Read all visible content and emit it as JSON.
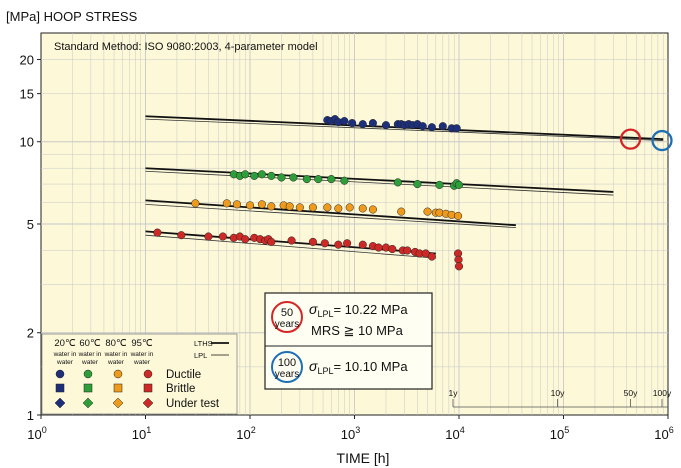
{
  "chart_data": {
    "type": "scatter",
    "ylabel": "[MPa] HOOP STRESS",
    "xlabel": "TIME [h]",
    "method_note": "Standard Method: ISO 9080:2003, 4-parameter model",
    "x_scale": "log",
    "y_scale": "log",
    "xlim": [
      1,
      1000000
    ],
    "ylim": [
      1,
      25
    ],
    "x_ticks": [
      {
        "value": 1,
        "base": "10",
        "exp": "0"
      },
      {
        "value": 10,
        "base": "10",
        "exp": "1"
      },
      {
        "value": 100,
        "base": "10",
        "exp": "2"
      },
      {
        "value": 1000,
        "base": "10",
        "exp": "3"
      },
      {
        "value": 10000,
        "base": "10",
        "exp": "4"
      },
      {
        "value": 100000,
        "base": "10",
        "exp": "5"
      },
      {
        "value": 1000000,
        "base": "10",
        "exp": "6"
      }
    ],
    "y_ticks": [
      {
        "value": 1,
        "label": "1"
      },
      {
        "value": 2,
        "label": "2"
      },
      {
        "value": 5,
        "label": "5"
      },
      {
        "value": 10,
        "label": "10"
      },
      {
        "value": 15,
        "label": "15"
      },
      {
        "value": 20,
        "label": "20"
      }
    ],
    "grid": true,
    "colors": {
      "plot_bg": "#fcf8d8",
      "grid": "#c8c8c8",
      "red_circle": "#d42626",
      "blue_circle": "#1f6fb4"
    },
    "series": [
      {
        "name": "20℃ water in water",
        "color": "#1d2f7a",
        "lths": {
          "x": [
            10,
            900000
          ],
          "y": [
            12.4,
            10.22
          ]
        },
        "lpl": {
          "x": [
            10,
            900000
          ],
          "y": [
            12.1,
            10.1
          ]
        },
        "points": [
          [
            550,
            12.0
          ],
          [
            600,
            11.9
          ],
          [
            650,
            12.1
          ],
          [
            700,
            11.8
          ],
          [
            800,
            11.9
          ],
          [
            950,
            11.7
          ],
          [
            1200,
            11.6
          ],
          [
            1500,
            11.7
          ],
          [
            2000,
            11.5
          ],
          [
            2600,
            11.6
          ],
          [
            2800,
            11.6
          ],
          [
            3000,
            11.5
          ],
          [
            3300,
            11.6
          ],
          [
            3600,
            11.5
          ],
          [
            4000,
            11.6
          ],
          [
            4500,
            11.4
          ],
          [
            5500,
            11.3
          ],
          [
            7000,
            11.4
          ],
          [
            8500,
            11.2
          ],
          [
            9500,
            11.2
          ]
        ]
      },
      {
        "name": "60℃ water in water",
        "color": "#2e9e3a",
        "lths": {
          "x": [
            10,
            300000
          ],
          "y": [
            8.0,
            6.55
          ]
        },
        "lpl": {
          "x": [
            10,
            300000
          ],
          "y": [
            7.8,
            6.38
          ]
        },
        "points": [
          [
            70,
            7.6
          ],
          [
            80,
            7.5
          ],
          [
            90,
            7.6
          ],
          [
            110,
            7.5
          ],
          [
            130,
            7.6
          ],
          [
            160,
            7.5
          ],
          [
            200,
            7.4
          ],
          [
            260,
            7.4
          ],
          [
            350,
            7.3
          ],
          [
            450,
            7.3
          ],
          [
            600,
            7.3
          ],
          [
            800,
            7.2
          ],
          [
            2600,
            7.1
          ],
          [
            4000,
            7.0
          ],
          [
            6500,
            6.95
          ],
          [
            9000,
            6.9
          ],
          [
            9500,
            7.05
          ],
          [
            10000,
            6.95
          ]
        ]
      },
      {
        "name": "80℃ water in water",
        "color": "#ee9a1c",
        "lths": {
          "x": [
            10,
            35000
          ],
          "y": [
            6.1,
            4.95
          ]
        },
        "lpl": {
          "x": [
            10,
            35000
          ],
          "y": [
            5.9,
            4.85
          ]
        },
        "points": [
          [
            30,
            5.95
          ],
          [
            60,
            5.95
          ],
          [
            75,
            5.9
          ],
          [
            100,
            5.85
          ],
          [
            130,
            5.9
          ],
          [
            160,
            5.8
          ],
          [
            210,
            5.85
          ],
          [
            240,
            5.8
          ],
          [
            300,
            5.75
          ],
          [
            400,
            5.75
          ],
          [
            550,
            5.75
          ],
          [
            700,
            5.7
          ],
          [
            900,
            5.75
          ],
          [
            1200,
            5.7
          ],
          [
            1500,
            5.65
          ],
          [
            2800,
            5.55
          ],
          [
            5000,
            5.55
          ],
          [
            6000,
            5.5
          ],
          [
            6500,
            5.5
          ],
          [
            7500,
            5.45
          ],
          [
            8500,
            5.4
          ],
          [
            9800,
            5.35
          ]
        ]
      },
      {
        "name": "95℃ water in water",
        "color": "#cd2a27",
        "lths": {
          "x": [
            10,
            6000
          ],
          "y": [
            4.7,
            3.9
          ]
        },
        "lpl": {
          "x": [
            10,
            6000
          ],
          "y": [
            4.55,
            3.75
          ]
        },
        "points": [
          [
            13,
            4.65
          ],
          [
            22,
            4.55
          ],
          [
            40,
            4.5
          ],
          [
            55,
            4.5
          ],
          [
            70,
            4.45
          ],
          [
            80,
            4.5
          ],
          [
            90,
            4.4
          ],
          [
            110,
            4.45
          ],
          [
            125,
            4.4
          ],
          [
            140,
            4.35
          ],
          [
            150,
            4.4
          ],
          [
            160,
            4.3
          ],
          [
            250,
            4.35
          ],
          [
            400,
            4.3
          ],
          [
            520,
            4.25
          ],
          [
            700,
            4.2
          ],
          [
            850,
            4.25
          ],
          [
            1200,
            4.2
          ],
          [
            1500,
            4.15
          ],
          [
            1700,
            4.1
          ],
          [
            2000,
            4.1
          ],
          [
            2300,
            4.05
          ],
          [
            2900,
            4.0
          ],
          [
            3200,
            4.0
          ],
          [
            3800,
            3.95
          ],
          [
            4200,
            3.9
          ],
          [
            4800,
            3.9
          ],
          [
            5500,
            3.8
          ],
          [
            9800,
            3.9
          ],
          [
            9900,
            3.7
          ],
          [
            10000,
            3.5
          ]
        ]
      }
    ],
    "legend": {
      "temperatures": [
        {
          "temp": "20℃",
          "medium": [
            "water in",
            "water"
          ]
        },
        {
          "temp": "60℃",
          "medium": [
            "water in",
            "water"
          ]
        },
        {
          "temp": "80℃",
          "medium": [
            "water in",
            "water"
          ]
        },
        {
          "temp": "95℃",
          "medium": [
            "water in",
            "water"
          ]
        }
      ],
      "line_labels": {
        "lths": "LTHS",
        "lpl": "LPL"
      },
      "failure_modes": [
        "Ductile",
        "Brittle",
        "Under test"
      ]
    },
    "time_scale": {
      "labels": [
        {
          "text": "1y",
          "x": 8760
        },
        {
          "text": "10y",
          "x": 87600
        },
        {
          "text": "50y",
          "x": 438000
        },
        {
          "text": "100y",
          "x": 876000
        }
      ]
    },
    "markers": [
      {
        "label": "50 years",
        "x": 438000,
        "y": 10.22,
        "color": "#d42626"
      },
      {
        "label": "100 years",
        "x": 876000,
        "y": 10.1,
        "color": "#1f6fb4"
      }
    ],
    "annotations": {
      "years50": {
        "line1": "50",
        "line2": "years",
        "sigma": "σ",
        "sub": "LPL",
        "value": "= 10.22 MPa",
        "mrs": "MRS ≧ 10 MPa"
      },
      "years100": {
        "line1": "100",
        "line2": "years",
        "sigma": "σ",
        "sub": "LPL",
        "value": "= 10.10 MPa"
      }
    }
  }
}
